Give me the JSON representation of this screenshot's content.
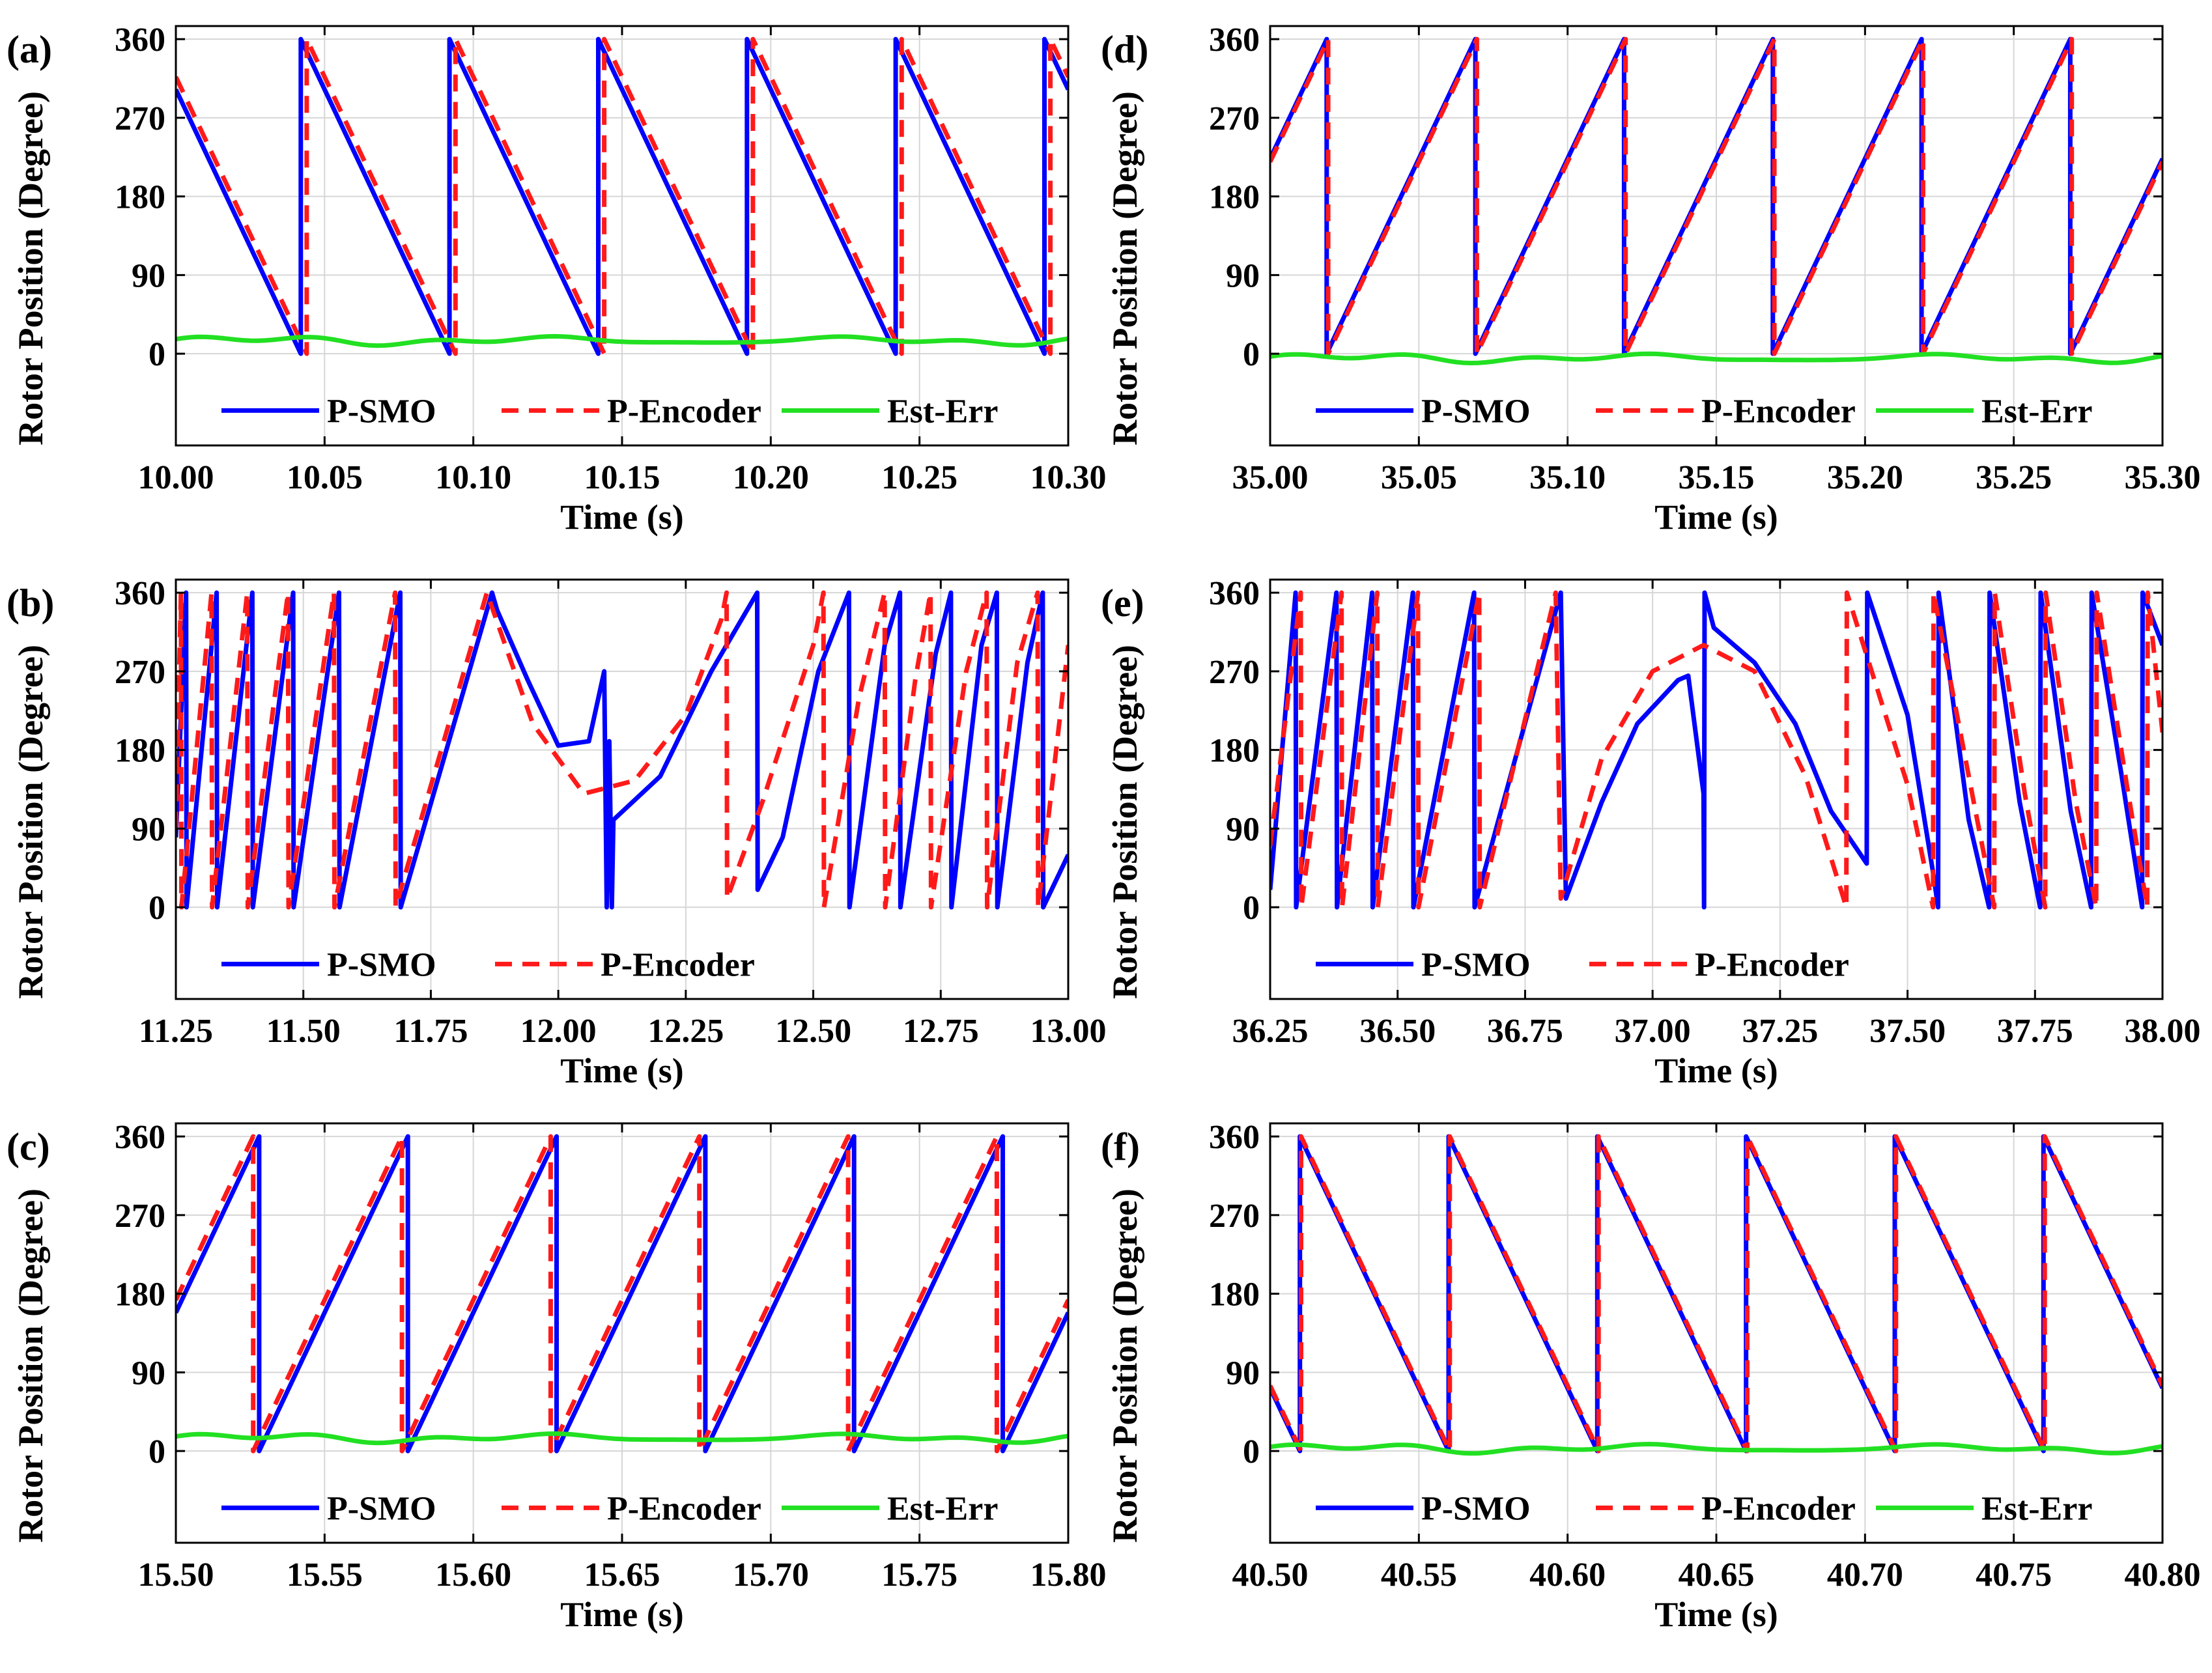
{
  "colors": {
    "smo": "#0000ff",
    "encoder": "#ff1a1a",
    "error": "#22e022",
    "grid": "#d6d6d6"
  },
  "chart_data": [
    {
      "panel": "(a)",
      "type": "line",
      "kind": "sawdown",
      "xlabel": "Time (s)",
      "ylabel": "Rotor Position (Degree)",
      "xlim": [
        10.0,
        10.3
      ],
      "ylim": [
        -105,
        375
      ],
      "xticks": [
        "10.00",
        "10.05",
        "10.10",
        "10.15",
        "10.20",
        "10.25",
        "10.30"
      ],
      "yticks": [
        "0",
        "90",
        "180",
        "270",
        "360"
      ],
      "resets_smo": [
        10.042,
        10.092,
        10.142,
        10.192,
        10.242,
        10.292
      ],
      "encoder_lag": 0.002,
      "err_level": 15,
      "legend": [
        "P-SMO",
        "P-Encoder",
        "Est-Err"
      ],
      "series": [
        {
          "name": "P-SMO"
        },
        {
          "name": "P-Encoder"
        },
        {
          "name": "Est-Err"
        }
      ]
    },
    {
      "panel": "(b)",
      "type": "line",
      "kind": "transient",
      "xlabel": "Time (s)",
      "ylabel": "Rotor Position (Degree)",
      "xlim": [
        11.25,
        13.0
      ],
      "ylim": [
        -105,
        375
      ],
      "xticks": [
        "11.25",
        "11.50",
        "11.75",
        "12.00",
        "12.25",
        "12.50",
        "12.75",
        "13.00"
      ],
      "yticks": [
        "0",
        "90",
        "180",
        "270",
        "360"
      ],
      "legend": [
        "P-SMO",
        "P-Encoder"
      ],
      "series": [
        {
          "name": "P-SMO",
          "x": [
            11.25,
            11.27,
            11.271,
            11.33,
            11.331,
            11.4,
            11.401,
            11.48,
            11.481,
            11.57,
            11.571,
            11.69,
            11.691,
            11.87,
            11.88,
            11.94,
            12.0,
            12.06,
            12.09,
            12.095,
            12.1,
            12.105,
            12.108,
            12.2,
            12.3,
            12.39,
            12.391,
            12.44,
            12.51,
            12.57,
            12.571,
            12.64,
            12.67,
            12.671,
            12.74,
            12.77,
            12.771,
            12.83,
            12.86,
            12.861,
            12.92,
            12.95,
            12.951,
            13.0
          ],
          "values": [
            80,
            360,
            0,
            360,
            0,
            360,
            0,
            360,
            0,
            360,
            0,
            360,
            0,
            360,
            340,
            260,
            185,
            190,
            270,
            0,
            190,
            0,
            100,
            150,
            270,
            360,
            20,
            80,
            270,
            360,
            0,
            300,
            360,
            0,
            290,
            360,
            0,
            300,
            360,
            0,
            280,
            360,
            0,
            60
          ]
        },
        {
          "name": "P-Encoder",
          "x": [
            11.25,
            11.26,
            11.261,
            11.32,
            11.321,
            11.39,
            11.391,
            11.47,
            11.471,
            11.56,
            11.561,
            11.68,
            11.681,
            11.86,
            11.95,
            12.05,
            12.15,
            12.25,
            12.32,
            12.33,
            12.331,
            12.4,
            12.5,
            12.52,
            12.521,
            12.59,
            12.64,
            12.641,
            12.7,
            12.73,
            12.731,
            12.8,
            12.84,
            12.841,
            12.9,
            12.94,
            12.941,
            13.0
          ],
          "values": [
            90,
            360,
            0,
            360,
            0,
            360,
            0,
            360,
            0,
            360,
            0,
            360,
            0,
            360,
            210,
            130,
            145,
            220,
            330,
            360,
            10,
            120,
            300,
            360,
            0,
            240,
            360,
            0,
            260,
            360,
            0,
            270,
            360,
            0,
            280,
            360,
            0,
            300
          ]
        }
      ]
    },
    {
      "panel": "(c)",
      "type": "line",
      "kind": "sawup",
      "xlabel": "Time (s)",
      "ylabel": "Rotor Position (Degree)",
      "xlim": [
        15.5,
        15.8
      ],
      "ylim": [
        -105,
        375
      ],
      "xticks": [
        "15.50",
        "15.55",
        "15.60",
        "15.65",
        "15.70",
        "15.75",
        "15.80"
      ],
      "yticks": [
        "0",
        "90",
        "180",
        "270",
        "360"
      ],
      "resets_smo": [
        15.528,
        15.578,
        15.628,
        15.678,
        15.728,
        15.778
      ],
      "encoder_lag": -0.002,
      "err_level": 15,
      "legend": [
        "P-SMO",
        "P-Encoder",
        "Est-Err"
      ],
      "series": [
        {
          "name": "P-SMO"
        },
        {
          "name": "P-Encoder"
        },
        {
          "name": "Est-Err"
        }
      ]
    },
    {
      "panel": "(d)",
      "type": "line",
      "kind": "sawup",
      "xlabel": "Time (s)",
      "ylabel": "Rotor Position (Degree)",
      "xlim": [
        35.0,
        35.3
      ],
      "ylim": [
        -105,
        375
      ],
      "xticks": [
        "35.00",
        "35.05",
        "35.10",
        "35.15",
        "35.20",
        "35.25",
        "35.30"
      ],
      "yticks": [
        "0",
        "90",
        "180",
        "270",
        "360"
      ],
      "resets_smo": [
        35.019,
        35.069,
        35.119,
        35.169,
        35.219,
        35.269
      ],
      "encoder_lag": 0.0005,
      "err_level": -5,
      "legend": [
        "P-SMO",
        "P-Encoder",
        "Est-Err"
      ],
      "series": [
        {
          "name": "P-SMO"
        },
        {
          "name": "P-Encoder"
        },
        {
          "name": "Est-Err"
        }
      ]
    },
    {
      "panel": "(e)",
      "type": "line",
      "kind": "transient",
      "xlabel": "Time (s)",
      "ylabel": "Rotor Position (Degree)",
      "xlim": [
        36.25,
        38.0
      ],
      "ylim": [
        -105,
        375
      ],
      "xticks": [
        "36.25",
        "36.50",
        "36.75",
        "37.00",
        "37.25",
        "37.50",
        "37.75",
        "38.00"
      ],
      "yticks": [
        "0",
        "90",
        "180",
        "270",
        "360"
      ],
      "legend": [
        "P-SMO",
        "P-Encoder"
      ],
      "series": [
        {
          "name": "P-SMO",
          "x": [
            36.25,
            36.3,
            36.301,
            36.38,
            36.381,
            36.45,
            36.451,
            36.53,
            36.531,
            36.65,
            36.651,
            36.82,
            36.83,
            36.9,
            36.97,
            37.05,
            37.07,
            37.1,
            37.101,
            37.102,
            37.12,
            37.2,
            37.28,
            37.35,
            37.42,
            37.421,
            37.5,
            37.55,
            37.56,
            37.561,
            37.62,
            37.66,
            37.661,
            37.72,
            37.76,
            37.761,
            37.82,
            37.86,
            37.861,
            37.92,
            37.96,
            37.961,
            38.0
          ],
          "values": [
            20,
            360,
            0,
            360,
            0,
            360,
            0,
            360,
            0,
            360,
            0,
            360,
            10,
            120,
            210,
            260,
            265,
            130,
            0,
            360,
            320,
            280,
            210,
            110,
            50,
            360,
            220,
            40,
            0,
            360,
            100,
            0,
            360,
            120,
            0,
            360,
            110,
            0,
            360,
            150,
            0,
            360,
            300
          ]
        },
        {
          "name": "P-Encoder",
          "x": [
            36.25,
            36.31,
            36.311,
            36.39,
            36.391,
            36.46,
            36.461,
            36.54,
            36.541,
            36.66,
            36.661,
            36.81,
            36.82,
            36.9,
            37.0,
            37.1,
            37.2,
            37.3,
            37.38,
            37.381,
            37.5,
            37.55,
            37.551,
            37.63,
            37.67,
            37.671,
            37.73,
            37.77,
            37.771,
            37.83,
            37.87,
            37.871,
            37.93,
            37.97,
            37.971,
            38.0
          ],
          "values": [
            70,
            360,
            0,
            360,
            0,
            360,
            0,
            360,
            0,
            360,
            0,
            360,
            10,
            170,
            270,
            300,
            270,
            150,
            0,
            360,
            140,
            0,
            360,
            120,
            0,
            360,
            130,
            0,
            360,
            120,
            0,
            360,
            140,
            0,
            360,
            200
          ]
        }
      ]
    },
    {
      "panel": "(f)",
      "type": "line",
      "kind": "sawdown",
      "xlabel": "Time (s)",
      "ylabel": "Rotor Position (Degree)",
      "xlim": [
        40.5,
        40.8
      ],
      "ylim": [
        -105,
        375
      ],
      "xticks": [
        "40.50",
        "40.55",
        "40.60",
        "40.65",
        "40.70",
        "40.75",
        "40.80"
      ],
      "yticks": [
        "0",
        "90",
        "180",
        "270",
        "360"
      ],
      "resets_smo": [
        40.51,
        40.56,
        40.61,
        40.66,
        40.71,
        40.76
      ],
      "encoder_lag": 0.0004,
      "err_level": 3,
      "legend": [
        "P-SMO",
        "P-Encoder",
        "Est-Err"
      ],
      "series": [
        {
          "name": "P-SMO"
        },
        {
          "name": "P-Encoder"
        },
        {
          "name": "Est-Err"
        }
      ]
    }
  ]
}
